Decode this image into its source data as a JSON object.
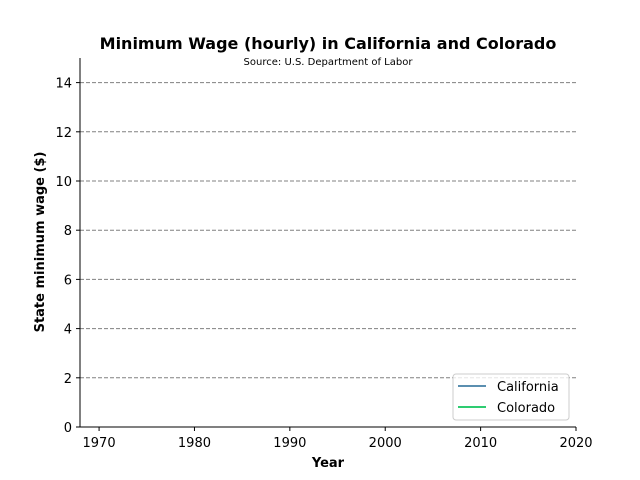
{
  "chart_data": {
    "type": "line",
    "title": "Minimum Wage (hourly) in California and Colorado",
    "subtitle": "Source: U.S. Department of Labor",
    "xlabel": "Year",
    "ylabel": "State minimum wage ($)",
    "xlim": [
      1968,
      2020
    ],
    "ylim": [
      0,
      15
    ],
    "xticks": [
      1970,
      1980,
      1990,
      2000,
      2010,
      2020
    ],
    "yticks": [
      0,
      2,
      4,
      6,
      8,
      10,
      12,
      14
    ],
    "grid": "y-dashed",
    "legend_position": "lower-right",
    "series": [
      {
        "name": "California",
        "color": "#5b8fb0",
        "x": [],
        "y": []
      },
      {
        "name": "Colorado",
        "color": "#2ecc71",
        "x": [],
        "y": []
      }
    ]
  }
}
